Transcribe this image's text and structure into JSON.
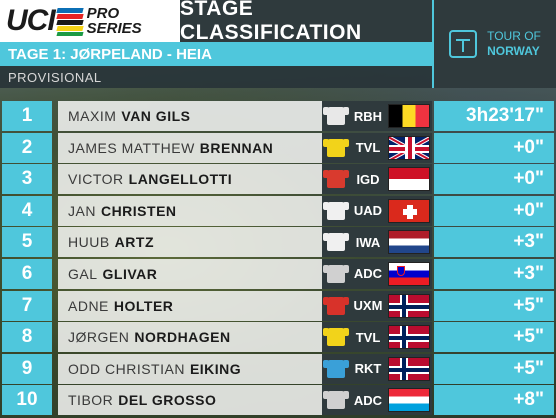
{
  "header": {
    "logo_uci": "UCI",
    "logo_pro": "PRO",
    "logo_series": "SERIES",
    "title": "STAGE CLASSIFICATION",
    "stage": "TAGE 1: JØRPELAND - HEIA",
    "status": "PROVISIONAL",
    "tour_line1": "TOUR OF",
    "tour_line2": "NORWAY"
  },
  "colors": {
    "accent": "#4fc7dc",
    "dark_panel": "#2f3a3d"
  },
  "riders": [
    {
      "pos": "1",
      "first": "MAXIM",
      "last": "VAN GILS",
      "team": "RBH",
      "jersey_icon": "jersey-icon",
      "jersey_color": "#e8e8e8",
      "flag": "belgium-flag-icon",
      "flag_class": "flag-be",
      "time": "3h23'17\""
    },
    {
      "pos": "2",
      "first": "JAMES MATTHEW",
      "last": "BRENNAN",
      "team": "TVL",
      "jersey_icon": "jersey-icon",
      "jersey_color": "#f2d31a",
      "flag": "uk-flag-icon",
      "flag_class": "flag-gb",
      "time": "+0\""
    },
    {
      "pos": "3",
      "first": "VICTOR",
      "last": "LANGELLOTTI",
      "team": "IGD",
      "jersey_icon": "jersey-icon",
      "jersey_color": "#d93a2e",
      "flag": "indonesia-flag-icon",
      "flag_class": "flag-id",
      "time": "+0\""
    },
    {
      "pos": "4",
      "first": "JAN",
      "last": "CHRISTEN",
      "team": "UAD",
      "jersey_icon": "jersey-icon",
      "jersey_color": "#f0f0f0",
      "flag": "switzerland-flag-icon",
      "flag_class": "flag-ch",
      "time": "+0\""
    },
    {
      "pos": "5",
      "first": "HUUB",
      "last": "ARTZ",
      "team": "IWA",
      "jersey_icon": "jersey-icon",
      "jersey_color": "#f0f0f0",
      "flag": "netherlands-flag-icon",
      "flag_class": "flag-nl",
      "time": "+3\""
    },
    {
      "pos": "6",
      "first": "GAL",
      "last": "GLIVAR",
      "team": "ADC",
      "jersey_icon": "jersey-icon",
      "jersey_color": "#d0d0d0",
      "flag": "slovenia-flag-icon",
      "flag_class": "flag-si",
      "time": "+3\""
    },
    {
      "pos": "7",
      "first": "ADNE",
      "last": "HOLTER",
      "team": "UXM",
      "jersey_icon": "jersey-icon",
      "jersey_color": "#d8322a",
      "flag": "norway-flag-icon",
      "flag_class": "flag-no",
      "time": "+5\""
    },
    {
      "pos": "8",
      "first": "JØRGEN",
      "last": "NORDHAGEN",
      "team": "TVL",
      "jersey_icon": "jersey-icon",
      "jersey_color": "#f2d31a",
      "flag": "norway-flag-icon",
      "flag_class": "flag-no",
      "time": "+5\""
    },
    {
      "pos": "9",
      "first": "ODD CHRISTIAN",
      "last": "EIKING",
      "team": "RKT",
      "jersey_icon": "jersey-icon",
      "jersey_color": "#3aa0d8",
      "flag": "norway-flag-icon",
      "flag_class": "flag-no",
      "time": "+5\""
    },
    {
      "pos": "10",
      "first": "TIBOR",
      "last": "DEL GROSSO",
      "team": "ADC",
      "jersey_icon": "jersey-icon",
      "jersey_color": "#d0d0d0",
      "flag": "luxembourg-flag-icon",
      "flag_class": "flag-lu",
      "time": "+8\""
    }
  ]
}
